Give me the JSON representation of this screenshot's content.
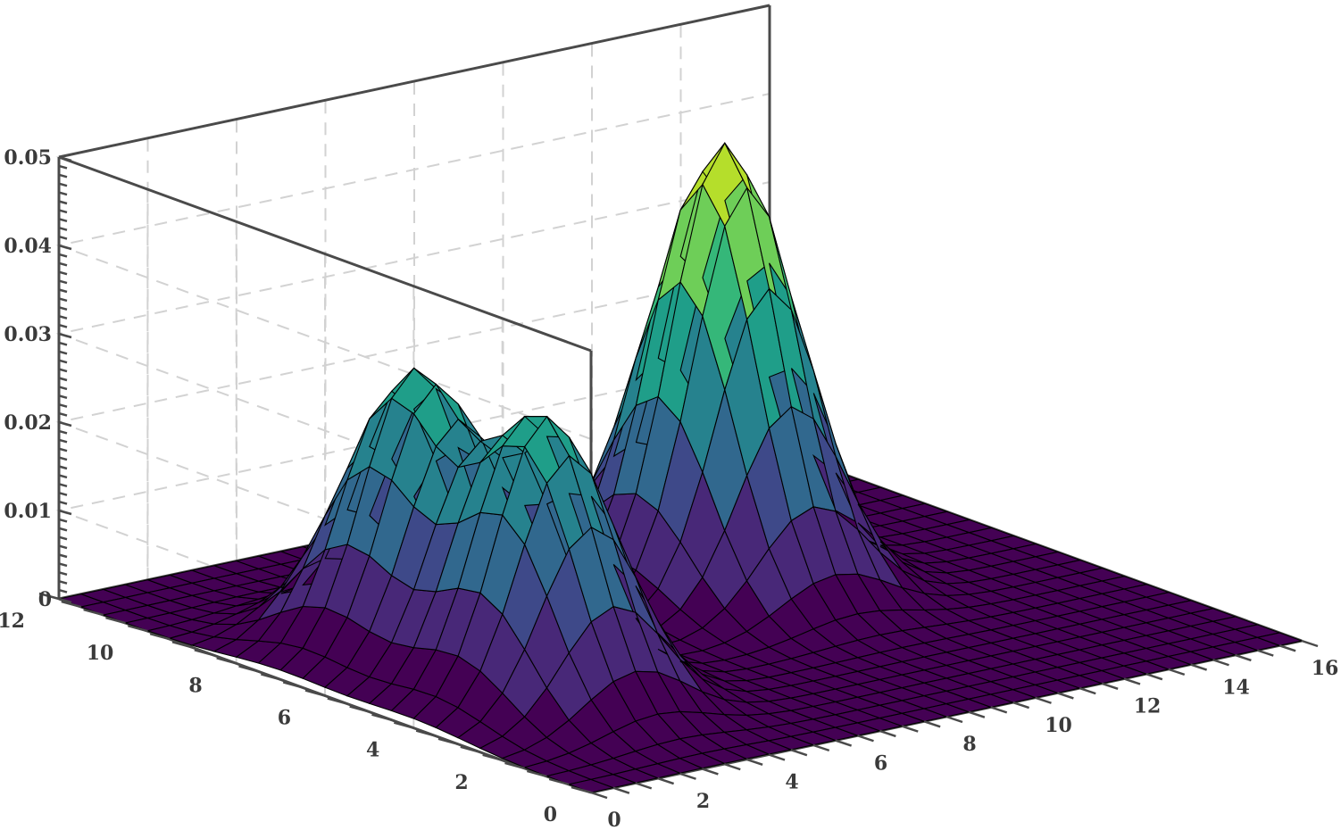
{
  "chart_data": {
    "type": "surface",
    "title": "",
    "xlabel": "",
    "ylabel": "",
    "zlabel": "",
    "xlim": [
      0,
      16
    ],
    "ylim": [
      0,
      12
    ],
    "zlim": [
      0,
      0.05
    ],
    "x_ticks": [
      "0",
      "2",
      "4",
      "6",
      "8",
      "10",
      "12",
      "14",
      "16"
    ],
    "y_ticks": [
      "0",
      "2",
      "4",
      "6",
      "8",
      "10",
      "12"
    ],
    "z_ticks": [
      "0",
      "0.01",
      "0.02",
      "0.03",
      "0.04",
      "0.05"
    ],
    "grid": true,
    "colormap": [
      "#440154",
      "#482878",
      "#3e4989",
      "#31688e",
      "#26828e",
      "#1f9e89",
      "#35b779",
      "#6ece58",
      "#b5de2b",
      "#fde725"
    ],
    "edge_color": "#000000",
    "peaks": [
      {
        "x": 3.0,
        "y": 4.0,
        "z_max": 0.031
      },
      {
        "x": 3.0,
        "y": 7.0,
        "z_max": 0.031
      },
      {
        "x": 10.0,
        "y": 7.0,
        "z_max": 0.05
      }
    ]
  }
}
